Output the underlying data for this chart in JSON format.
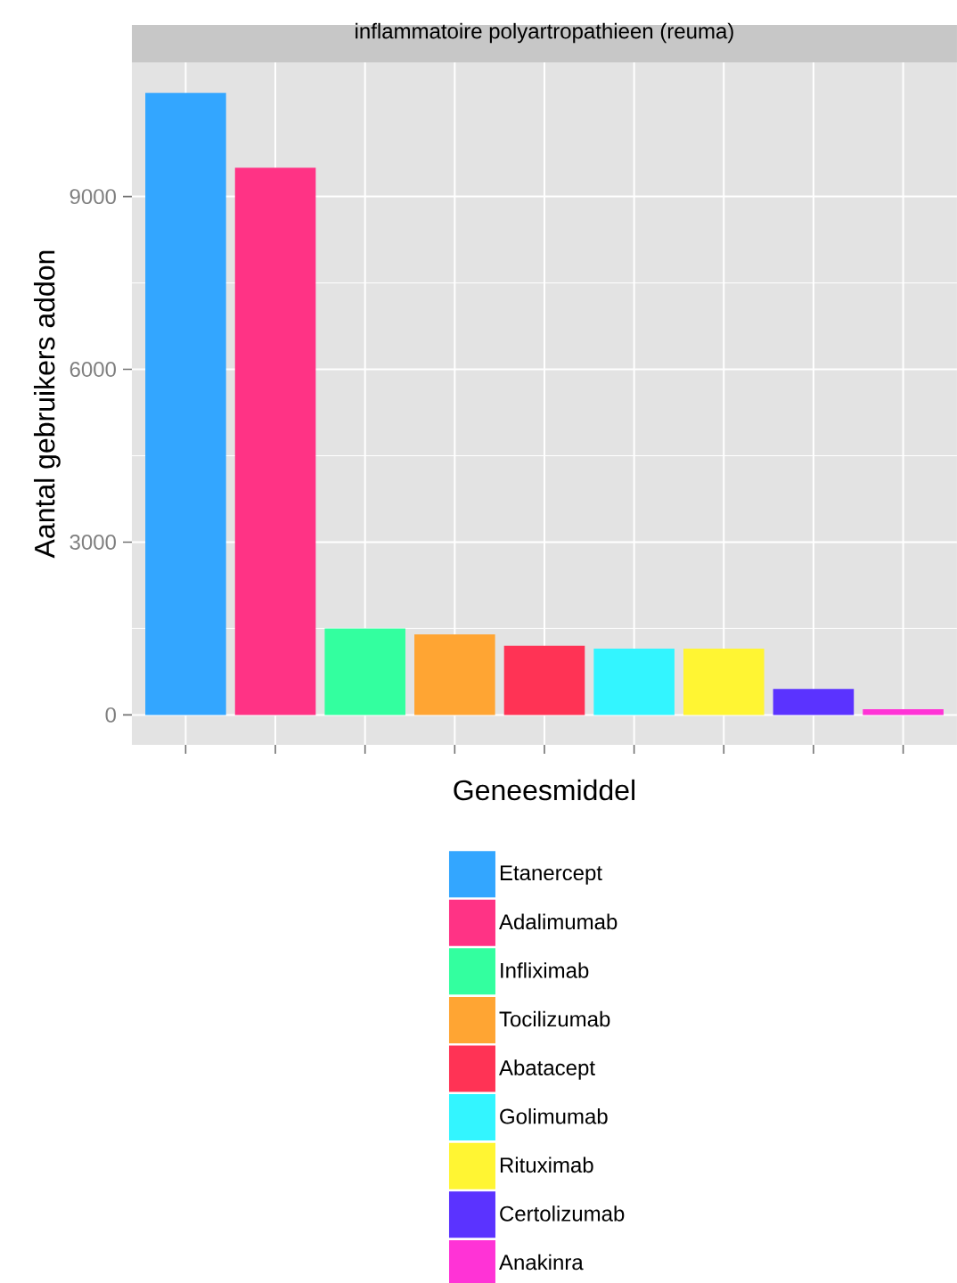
{
  "chart_data": {
    "type": "bar",
    "title": "inflammatoire polyartropathieen (reuma)",
    "xlabel": "Geneesmiddel",
    "ylabel": "Aantal gebruikers addon",
    "categories": [
      null,
      null,
      null,
      null,
      null,
      null,
      null,
      null,
      null
    ],
    "series": [
      {
        "name": "Etanercept",
        "color": "#33a6ff",
        "values": [
          10800,
          null,
          null,
          null,
          null,
          null,
          null,
          null,
          null
        ]
      },
      {
        "name": "Adalimumab",
        "color": "#ff3385",
        "values": [
          null,
          9500,
          null,
          null,
          null,
          null,
          null,
          null,
          null
        ]
      },
      {
        "name": "Infliximab",
        "color": "#33ff9f",
        "values": [
          null,
          null,
          1500,
          null,
          null,
          null,
          null,
          null,
          null
        ]
      },
      {
        "name": "Tocilizumab",
        "color": "#ffa533",
        "values": [
          null,
          null,
          null,
          1400,
          null,
          null,
          null,
          null,
          null
        ]
      },
      {
        "name": "Abatacept",
        "color": "#ff3355",
        "values": [
          null,
          null,
          null,
          null,
          1200,
          null,
          null,
          null,
          null
        ]
      },
      {
        "name": "Golimumab",
        "color": "#33f5ff",
        "values": [
          null,
          null,
          null,
          null,
          null,
          1150,
          null,
          null,
          null
        ]
      },
      {
        "name": "Rituximab",
        "color": "#fff533",
        "values": [
          null,
          null,
          null,
          null,
          null,
          null,
          1150,
          null,
          null
        ]
      },
      {
        "name": "Certolizumab",
        "color": "#5b33ff",
        "values": [
          null,
          null,
          null,
          null,
          null,
          null,
          null,
          450,
          null
        ]
      },
      {
        "name": "Anakinra",
        "color": "#ff33d6",
        "values": [
          null,
          null,
          null,
          null,
          null,
          null,
          null,
          null,
          100
        ]
      }
    ],
    "ylim": [
      -520,
      11330
    ],
    "yticks": [
      0,
      3000,
      6000,
      9000
    ],
    "grid": true,
    "legend": "bottom",
    "tick_labels": "y"
  }
}
